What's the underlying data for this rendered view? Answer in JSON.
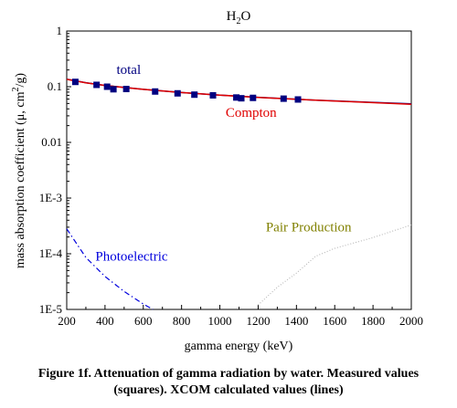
{
  "chart_data": {
    "type": "scatter",
    "title": {
      "base": "H",
      "sub": "2",
      "tail": "O"
    },
    "xlabel": "gamma energy (keV)",
    "ylabel": {
      "part1": "mass absorption coefficient (μ, cm",
      "sup": "2",
      "part2": "/g)"
    },
    "xlim": [
      200,
      2000
    ],
    "ylim": [
      1e-05,
      1
    ],
    "yscale": "log",
    "grid": false,
    "xticks": [
      "200",
      "400",
      "600",
      "800",
      "1000",
      "1200",
      "1400",
      "1600",
      "1800",
      "2000"
    ],
    "yticks": [
      {
        "value": 1,
        "label": "1"
      },
      {
        "value": 0.1,
        "label": "0.1"
      },
      {
        "value": 0.01,
        "label": "0.01"
      },
      {
        "value": 0.001,
        "label": "1E-3"
      },
      {
        "value": 0.0001,
        "label": "1E-4"
      },
      {
        "value": 1e-05,
        "label": "1E-5"
      }
    ],
    "series": [
      {
        "name": "total",
        "color": "#000080",
        "style": "solid",
        "x": [
          200,
          300,
          400,
          500,
          600,
          800,
          1000,
          1200,
          1500,
          2000
        ],
        "y": [
          0.137,
          0.118,
          0.1056,
          0.0969,
          0.0896,
          0.0786,
          0.0707,
          0.0645,
          0.0575,
          0.0494
        ]
      },
      {
        "name": "Compton",
        "color": "#e00000",
        "style": "solid",
        "x": [
          200,
          300,
          400,
          500,
          600,
          800,
          1000,
          1200,
          1500,
          2000
        ],
        "y": [
          0.136,
          0.1176,
          0.1055,
          0.0968,
          0.0895,
          0.0785,
          0.0706,
          0.0643,
          0.0571,
          0.0485
        ]
      },
      {
        "name": "Photoelectric",
        "color": "#0000dd",
        "style": "dashdot",
        "x": [
          200,
          300,
          400,
          500,
          600,
          650
        ],
        "y": [
          0.00028,
          8.6e-05,
          3.9e-05,
          2.1e-05,
          1.25e-05,
          1e-05
        ]
      },
      {
        "name": "Pair Production",
        "color": "#bbbbbb",
        "style": "dotted",
        "x": [
          1200,
          1300,
          1400,
          1500,
          1600,
          1800,
          2000
        ],
        "y": [
          1.2e-05,
          2.5e-05,
          4.5e-05,
          9e-05,
          0.000125,
          0.000195,
          0.00033
        ]
      }
    ],
    "measured": {
      "name": "measured",
      "color": "#000080",
      "x": [
        245,
        356,
        411,
        444,
        511,
        662,
        779,
        867,
        964,
        1086,
        1112,
        1173,
        1333,
        1408
      ],
      "y": [
        0.122,
        0.108,
        0.1,
        0.09,
        0.091,
        0.082,
        0.076,
        0.072,
        0.07,
        0.064,
        0.062,
        0.063,
        0.061,
        0.059
      ]
    },
    "annotations": [
      {
        "text": "total",
        "color": "#000080",
        "x": 460,
        "y": 0.17
      },
      {
        "text": "Compton",
        "color": "#e00000",
        "x": 1030,
        "y": 0.029
      },
      {
        "text": "Photoelectric",
        "color": "#0000dd",
        "x": 350,
        "y": 7.5e-05
      },
      {
        "text": "Pair Production",
        "color": "#808000",
        "x": 1240,
        "y": 0.00025
      }
    ]
  },
  "caption": {
    "line1": "Figure 1f. Attenuation of gamma radiation by water. Measured values",
    "line2": "(squares). XCOM calculated values (lines)"
  }
}
